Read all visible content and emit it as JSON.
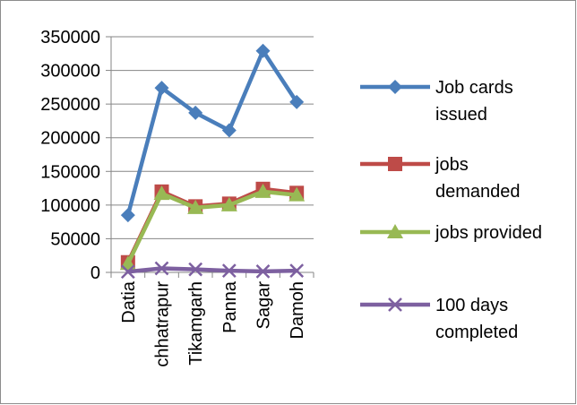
{
  "chart_data": {
    "type": "line",
    "categories": [
      "Datia",
      "chhatrapur",
      "Tikamgarh",
      "Panna",
      "Sagar",
      "Damoh"
    ],
    "ylim": [
      0,
      350000
    ],
    "yticks": [
      0,
      50000,
      100000,
      150000,
      200000,
      250000,
      300000,
      350000
    ],
    "grid": true,
    "legend_position": "right",
    "series": [
      {
        "name": "Job cards issued",
        "name_lines": [
          "Job cards",
          "issued"
        ],
        "color": "#4a7ebb",
        "marker": "diamond",
        "values": [
          85000,
          274000,
          237000,
          211000,
          329000,
          253000
        ]
      },
      {
        "name": "jobs demanded",
        "name_lines": [
          "jobs",
          "demanded"
        ],
        "color": "#be4b48",
        "marker": "square",
        "values": [
          15000,
          120000,
          98000,
          102000,
          124000,
          118000
        ]
      },
      {
        "name": "jobs provided",
        "name_lines": [
          "jobs provided"
        ],
        "color": "#98b954",
        "marker": "triangle",
        "values": [
          13000,
          117000,
          96000,
          100000,
          120000,
          115000
        ]
      },
      {
        "name": "100 days completed",
        "name_lines": [
          "100 days",
          "completed"
        ],
        "color": "#7d60a0",
        "marker": "x",
        "values": [
          1000,
          6000,
          4500,
          2500,
          1500,
          2500
        ]
      }
    ]
  }
}
